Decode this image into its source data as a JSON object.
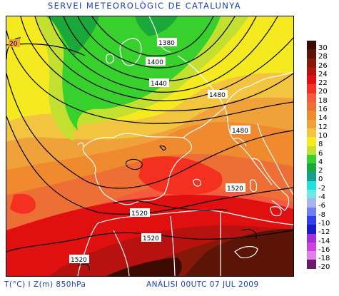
{
  "title": "SERVEI METEOROLÒGIC DE CATALUNYA",
  "footer": {
    "left": "T(°C) I Z(m) 850hPa",
    "right": "ANÀLISI 00UTC 07 JUL 2009"
  },
  "contour_labels": [
    "20",
    "1380",
    "1400",
    "1440",
    "1480",
    "1480",
    "1520",
    "1520",
    "1520",
    "1520"
  ],
  "legend": [
    {
      "label": "30",
      "color": "#3d0a02"
    },
    {
      "label": "28",
      "color": "#5c1406"
    },
    {
      "label": "26",
      "color": "#86180a"
    },
    {
      "label": "24",
      "color": "#b81210"
    },
    {
      "label": "22",
      "color": "#e01010"
    },
    {
      "label": "20",
      "color": "#f43020"
    },
    {
      "label": "18",
      "color": "#f45a40"
    },
    {
      "label": "16",
      "color": "#ee6f35"
    },
    {
      "label": "14",
      "color": "#ef8a2e"
    },
    {
      "label": "12",
      "color": "#f0a23a"
    },
    {
      "label": "10",
      "color": "#f2c440"
    },
    {
      "label": "8",
      "color": "#f5ea20"
    },
    {
      "label": "6",
      "color": "#c3e030"
    },
    {
      "label": "4",
      "color": "#38d02c"
    },
    {
      "label": "2",
      "color": "#1aa83a"
    },
    {
      "label": "0",
      "color": "#14a090"
    },
    {
      "label": "-2",
      "color": "#20e0e0"
    },
    {
      "label": "-4",
      "color": "#70e8e8"
    },
    {
      "label": "-6",
      "color": "#a8b4ec"
    },
    {
      "label": "-8",
      "color": "#6c80f0"
    },
    {
      "label": "-10",
      "color": "#3040f0"
    },
    {
      "label": "-12",
      "color": "#1a1ac8"
    },
    {
      "label": "-14",
      "color": "#a030d8"
    },
    {
      "label": "-16",
      "color": "#d040e0"
    },
    {
      "label": "-18",
      "color": "#e080e8"
    },
    {
      "label": "-20",
      "color": "#6a1a6a"
    }
  ]
}
